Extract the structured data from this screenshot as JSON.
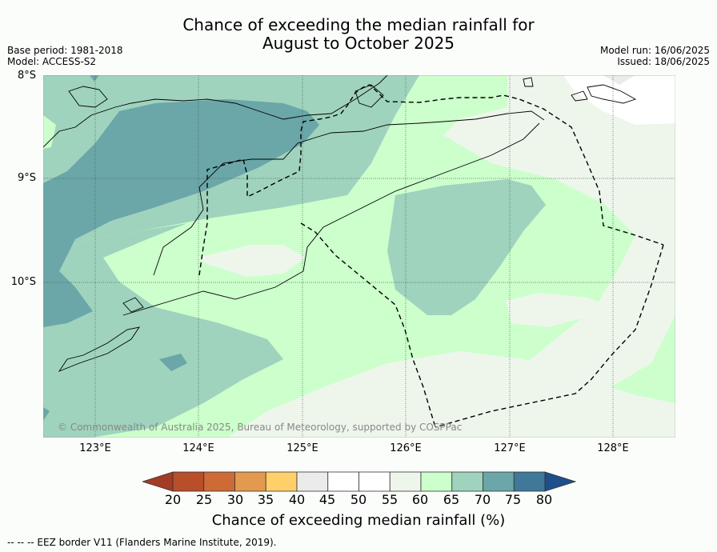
{
  "title": {
    "line1": "Chance of exceeding the median rainfall for",
    "line2": "August to October 2025"
  },
  "meta": {
    "base_period": "Base period: 1981-2018",
    "model": "Model: ACCESS-S2",
    "model_run": "Model run: 16/06/2025",
    "issued": "Issued: 18/06/2025"
  },
  "map": {
    "latitude_labels": [
      "8°S",
      "9°S",
      "10°S"
    ],
    "longitude_labels": [
      "123°E",
      "124°E",
      "125°E",
      "126°E",
      "127°E",
      "128°E"
    ],
    "copyright": "© Commonwealth of Australia 2025, Bureau of Meteorology, supported by COSPPac",
    "colors": {
      "c45": "#ffffff",
      "c55": "#eef6ec",
      "c60": "#ccffcc",
      "c65": "#9fd3bd",
      "c70": "#6ba6a8",
      "c75": "#3f7898"
    }
  },
  "colorbar": {
    "ticks": [
      "20",
      "25",
      "30",
      "35",
      "40",
      "45",
      "50",
      "55",
      "60",
      "65",
      "70",
      "75",
      "80"
    ],
    "colors": [
      "#a33c25",
      "#b84e2a",
      "#cd6a36",
      "#e39a4f",
      "#ffd06a",
      "#ebebeb",
      "#ffffff",
      "#ffffff",
      "#eef6ec",
      "#ccffcc",
      "#9fd3bd",
      "#6ba6a8",
      "#3f7898",
      "#1d4f8a"
    ],
    "label": "Chance of exceeding median rainfall (%)"
  },
  "footnote": "-- -- -- EEZ border V11 (Flanders Marine Institute, 2019)."
}
